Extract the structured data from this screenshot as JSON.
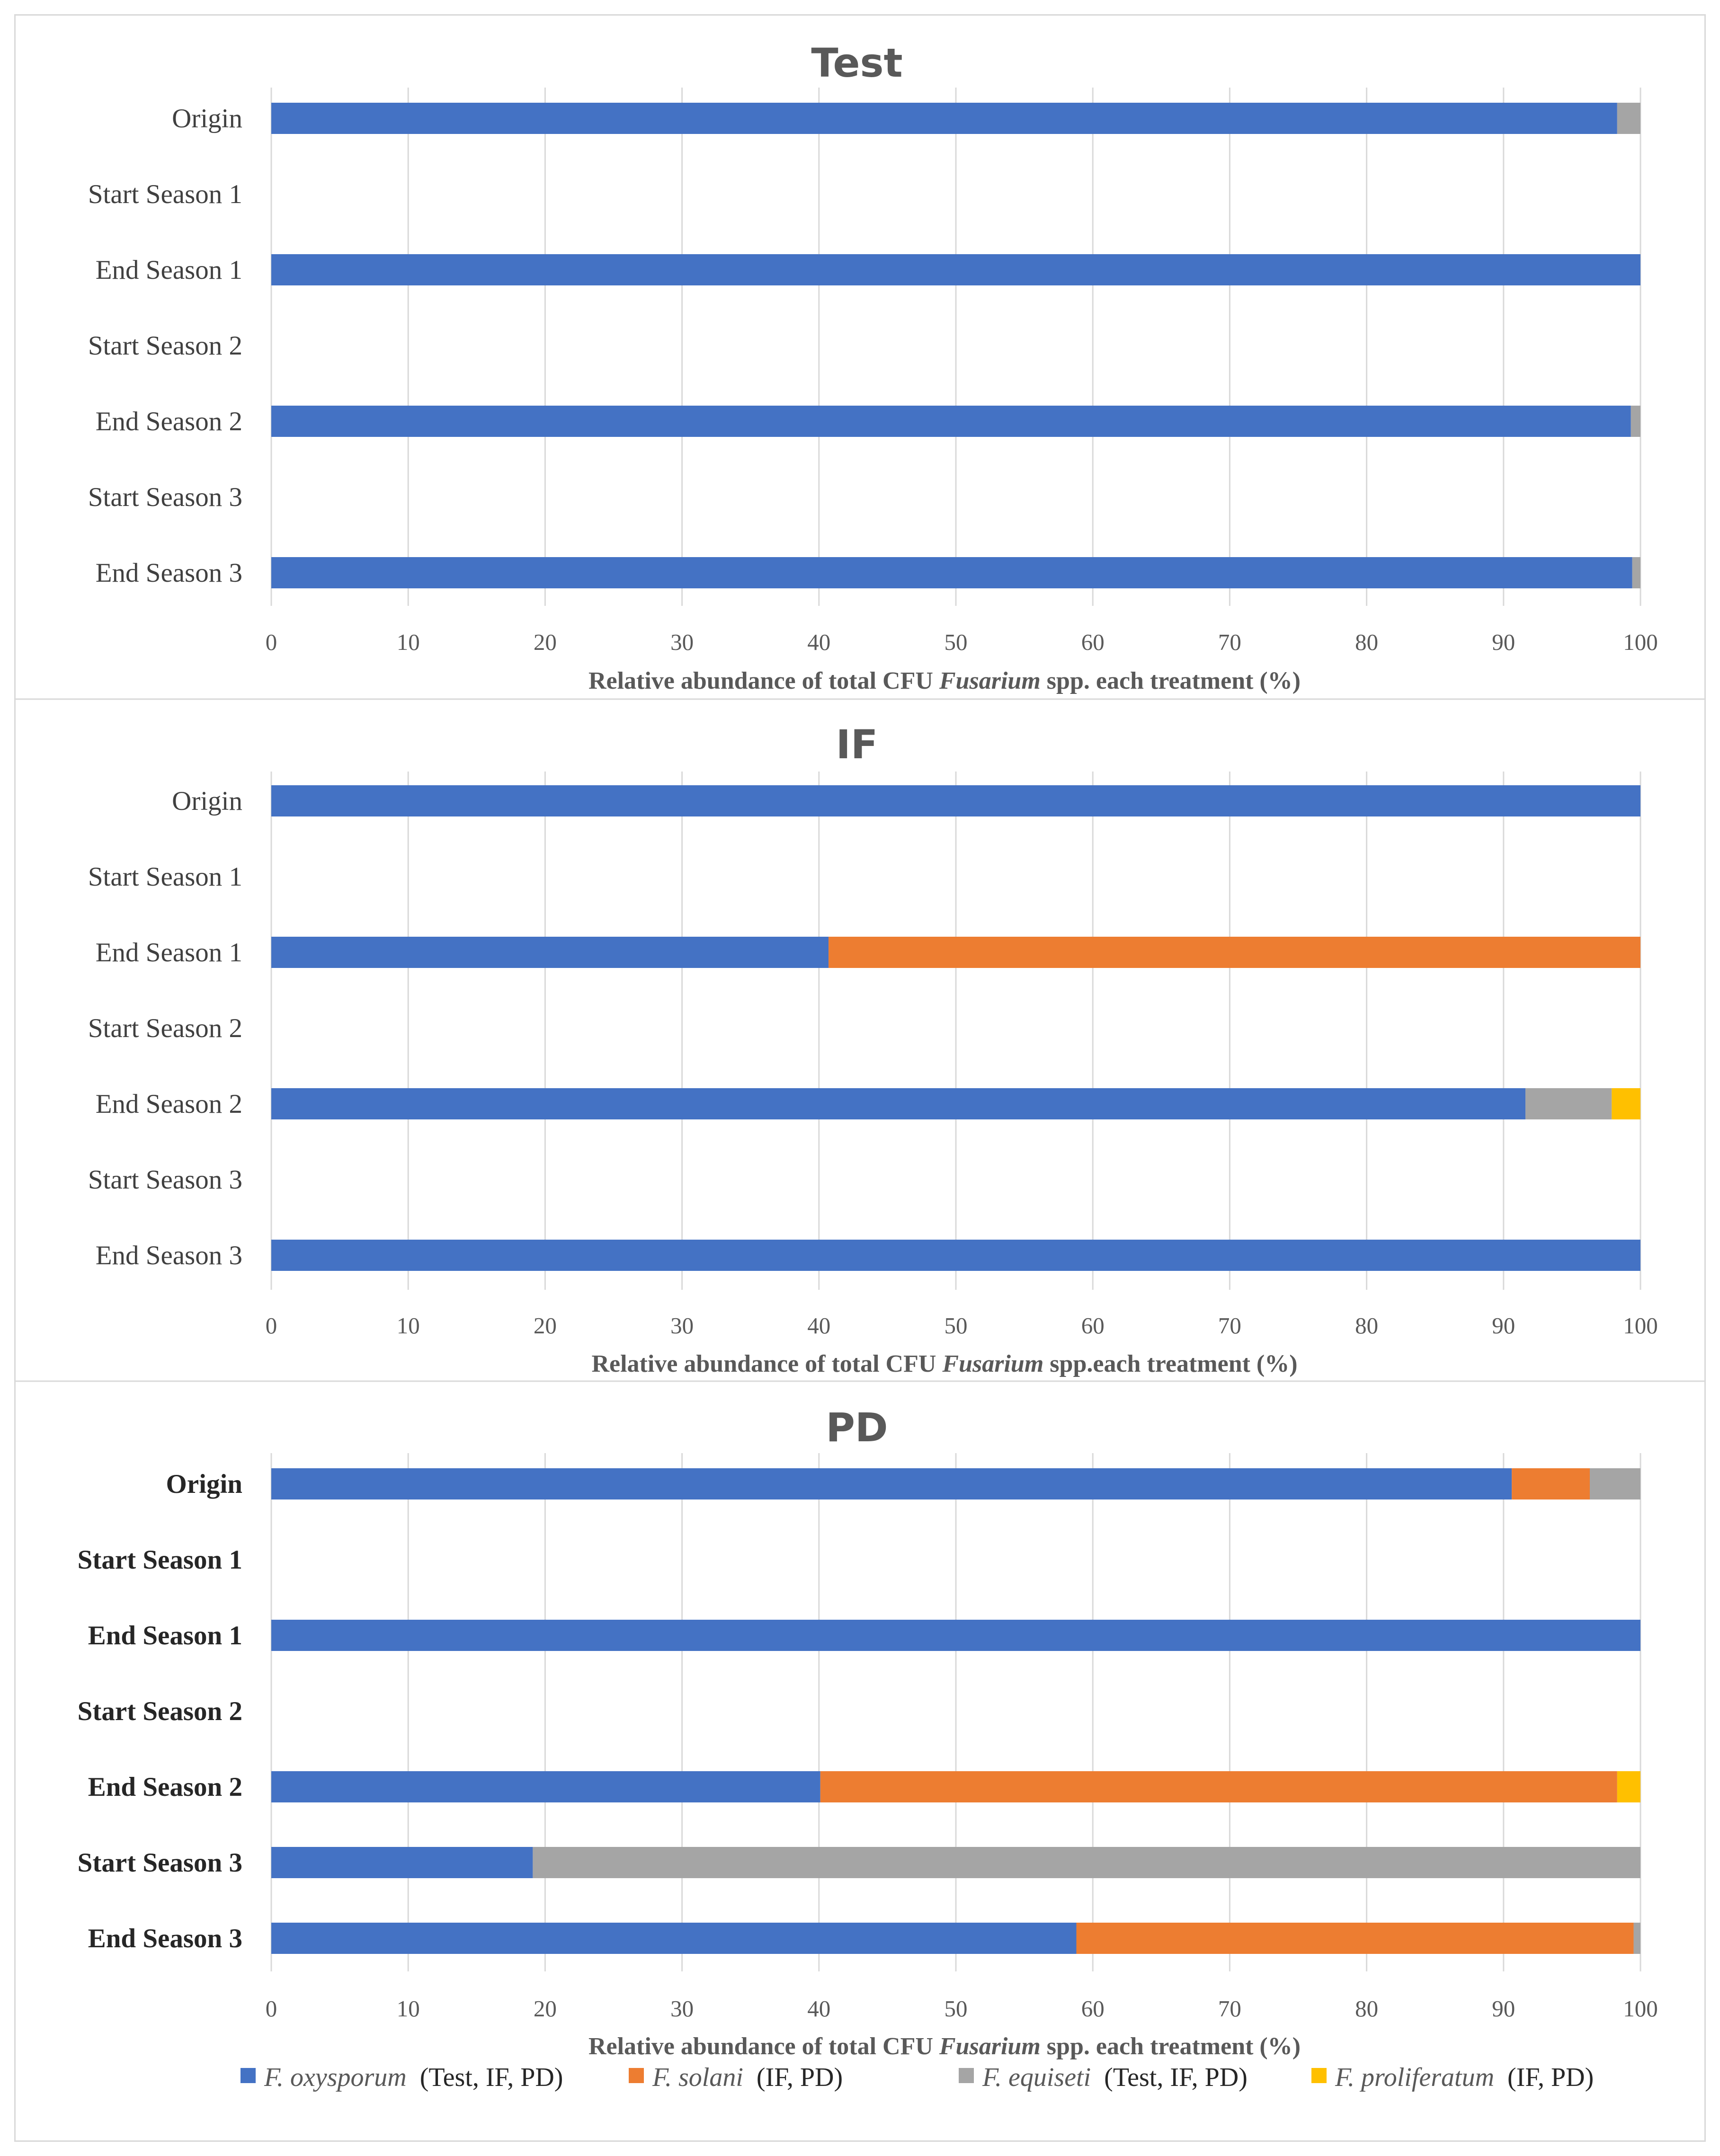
{
  "chart_data": [
    {
      "type": "bar",
      "orientation": "horizontal",
      "stacked": true,
      "title": "Test",
      "categories": [
        "Origin",
        "Start Season 1",
        "End Season 1",
        "Start Season 2",
        "End Season 2",
        "Start Season 3",
        "End Season 3"
      ],
      "series": [
        {
          "name": "F. oxysporum",
          "values": [
            98.3,
            0,
            100,
            0,
            99.3,
            0,
            99.4
          ]
        },
        {
          "name": "F. solani",
          "values": [
            0,
            0,
            0,
            0,
            0,
            0,
            0
          ]
        },
        {
          "name": "F. equiseti",
          "values": [
            1.7,
            0,
            0,
            0,
            0.7,
            0,
            0.6
          ]
        },
        {
          "name": "F. proliferatum",
          "values": [
            0,
            0,
            0,
            0,
            0,
            0,
            0
          ]
        }
      ],
      "xlim": [
        0,
        100
      ],
      "xticks": [
        "0",
        "10",
        "20",
        "30",
        "40",
        "50",
        "60",
        "70",
        "80",
        "90",
        "100"
      ],
      "xlabel": {
        "prefix": "Relative abundance of total CFU ",
        "genus": "Fusarium",
        "suffix": " spp. each treatment (%)"
      },
      "label_weight": "normal",
      "grid": true
    },
    {
      "type": "bar",
      "orientation": "horizontal",
      "stacked": true,
      "title": "IF",
      "categories": [
        "Origin",
        "Start Season 1",
        "End Season 1",
        "Start Season 2",
        "End Season 2",
        "Start Season 3",
        "End Season 3"
      ],
      "series": [
        {
          "name": "F. oxysporum",
          "values": [
            100,
            0,
            40.7,
            0,
            91.6,
            0,
            100
          ]
        },
        {
          "name": "F. solani",
          "values": [
            0,
            0,
            59.3,
            0,
            0,
            0,
            0
          ]
        },
        {
          "name": "F. equiseti",
          "values": [
            0,
            0,
            0,
            0,
            6.3,
            0,
            0
          ]
        },
        {
          "name": "F. proliferatum",
          "values": [
            0,
            0,
            0,
            0,
            2.1,
            0,
            0
          ]
        }
      ],
      "xlim": [
        0,
        100
      ],
      "xticks": [
        "0",
        "10",
        "20",
        "30",
        "40",
        "50",
        "60",
        "70",
        "80",
        "90",
        "100"
      ],
      "xlabel": {
        "prefix": "Relative abundance of total CFU ",
        "genus": "Fusarium",
        "suffix": " spp.each treatment (%)"
      },
      "label_weight": "normal",
      "grid": true
    },
    {
      "type": "bar",
      "orientation": "horizontal",
      "stacked": true,
      "title": "PD",
      "categories": [
        "Origin",
        "Start Season 1",
        "End Season 1",
        "Start Season 2",
        "End Season 2",
        "Start Season 3",
        "End Season 3"
      ],
      "series": [
        {
          "name": "F. oxysporum",
          "values": [
            90.6,
            0,
            100,
            0,
            40.1,
            19.1,
            58.8
          ]
        },
        {
          "name": "F. solani",
          "values": [
            5.7,
            0,
            0,
            0,
            58.2,
            0,
            40.7
          ]
        },
        {
          "name": "F. equiseti",
          "values": [
            3.7,
            0,
            0,
            0,
            0,
            80.9,
            0.5
          ]
        },
        {
          "name": "F. proliferatum",
          "values": [
            0,
            0,
            0,
            0,
            1.7,
            0,
            0
          ]
        }
      ],
      "xlim": [
        0,
        100
      ],
      "xticks": [
        "0",
        "10",
        "20",
        "30",
        "40",
        "50",
        "60",
        "70",
        "80",
        "90",
        "100"
      ],
      "xlabel": {
        "prefix": "Relative abundance of total CFU ",
        "genus": "Fusarium",
        "suffix": " spp. each treatment (%)"
      },
      "label_weight": "bold",
      "grid": true
    }
  ],
  "colors": {
    "F. oxysporum": "#4472c4",
    "F. solani": "#ed7d31",
    "F. equiseti": "#a5a5a5",
    "F. proliferatum": "#ffc000"
  },
  "legend": [
    {
      "species": "F. oxysporum",
      "treatments": "(Test, IF, PD)"
    },
    {
      "species": "F. solani",
      "treatments": "(IF, PD)"
    },
    {
      "species": "F. equiseti",
      "treatments": "(Test, IF, PD)"
    },
    {
      "species": "F. proliferatum",
      "treatments": "(IF, PD)"
    }
  ]
}
